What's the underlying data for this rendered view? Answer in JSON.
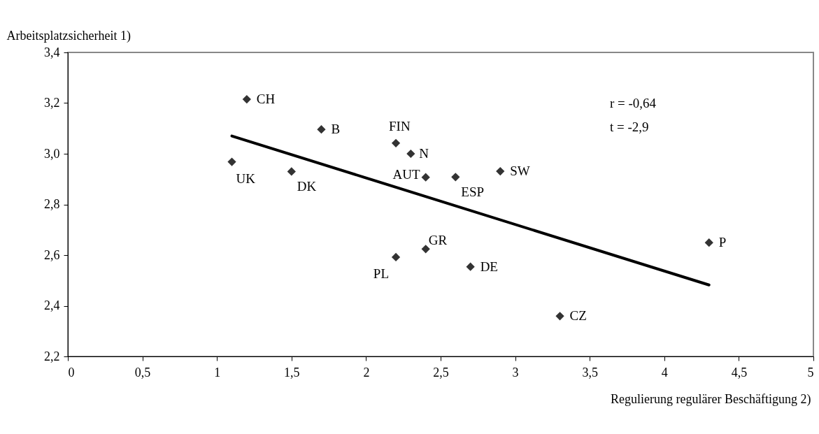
{
  "chart_data": {
    "type": "scatter",
    "xlabel": "Regulierung regulärer Beschäftigung 2)",
    "ylabel": "Arbeitsplatzsicherheit 1)",
    "xlim": [
      0,
      5
    ],
    "ylim": [
      2.2,
      3.4
    ],
    "xticks": [
      0,
      {
        "value": 0.5,
        "label": "0,5"
      },
      1,
      {
        "value": 1.5,
        "label": "1,5"
      },
      2,
      {
        "value": 2.5,
        "label": "2,5"
      },
      3,
      {
        "value": 3.5,
        "label": "3,5"
      },
      4,
      {
        "value": 4.5,
        "label": "4,5"
      },
      5
    ],
    "yticks": [
      {
        "value": 2.2,
        "label": "2,2"
      },
      {
        "value": 2.4,
        "label": "2,4"
      },
      {
        "value": 2.6,
        "label": "2,6"
      },
      {
        "value": 2.8,
        "label": "2,8"
      },
      {
        "value": 3.0,
        "label": "3,0"
      },
      {
        "value": 3.2,
        "label": "3,2"
      },
      {
        "value": 3.4,
        "label": "3,4"
      }
    ],
    "grid": false,
    "marker": "diamond",
    "series": [
      {
        "type": "scatter",
        "color": "#333333",
        "x": [
          1.1,
          1.2,
          1.5,
          1.7,
          2.2,
          2.3,
          2.4,
          2.6,
          2.9,
          2.2,
          2.4,
          2.7,
          3.3,
          4.3
        ],
        "values": [
          2.968,
          3.215,
          2.93,
          3.096,
          3.042,
          3.0,
          2.907,
          2.908,
          2.931,
          2.592,
          2.624,
          2.554,
          2.359,
          2.649
        ]
      },
      {
        "type": "line",
        "color": "#000000",
        "marker": "none",
        "line_style": "solid",
        "x": [
          1.1,
          4.3
        ],
        "values": [
          3.07,
          2.482
        ]
      }
    ],
    "annotations": [
      {
        "text": "UK",
        "x": 1.1,
        "y": 2.968
      },
      {
        "text": "CH",
        "x": 1.2,
        "y": 3.215
      },
      {
        "text": "DK",
        "x": 1.5,
        "y": 2.93
      },
      {
        "text": "B",
        "x": 1.7,
        "y": 3.096
      },
      {
        "text": "FIN",
        "x": 2.2,
        "y": 3.042
      },
      {
        "text": "N",
        "x": 2.3,
        "y": 3.0
      },
      {
        "text": "AUT",
        "x": 2.4,
        "y": 2.907
      },
      {
        "text": "ESP",
        "x": 2.6,
        "y": 2.908
      },
      {
        "text": "SW",
        "x": 2.9,
        "y": 2.931
      },
      {
        "text": "PL",
        "x": 2.2,
        "y": 2.592
      },
      {
        "text": "GR",
        "x": 2.4,
        "y": 2.624
      },
      {
        "text": "DE",
        "x": 2.7,
        "y": 2.554
      },
      {
        "text": "CZ",
        "x": 3.3,
        "y": 2.359
      },
      {
        "text": "P",
        "x": 4.3,
        "y": 2.649
      },
      "r = -0,64",
      "t = -2,9"
    ]
  }
}
